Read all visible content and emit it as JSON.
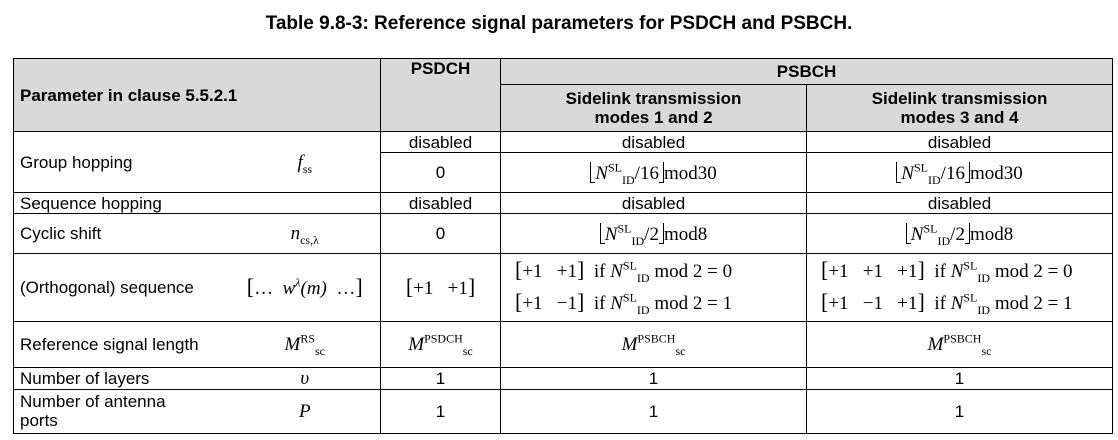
{
  "caption": "Table 9.8-3: Reference signal parameters for PSDCH and PSBCH.",
  "header": {
    "param": "Parameter in clause 5.5.2.1",
    "psdch": "PSDCH",
    "psbch": "PSBCH",
    "modes12": "Sidelink transmission modes 1 and 2",
    "modes34": "Sidelink transmission modes 3 and 4"
  },
  "rows": {
    "group_hopping": {
      "label": "Group hopping",
      "status_psdch": "disabled",
      "status_12": "disabled",
      "status_34": "disabled",
      "symbol_base": "f",
      "symbol_sub": "ss",
      "psdch": "0",
      "n_sym": "N",
      "n_sup": "SL",
      "n_sub": "ID",
      "div": "/16",
      "mod": "mod30"
    },
    "sequence_hopping": {
      "label": "Sequence hopping",
      "psdch": "disabled",
      "modes12": "disabled",
      "modes34": "disabled"
    },
    "cyclic_shift": {
      "label": "Cyclic shift",
      "symbol_base": "n",
      "symbol_sub": "cs,λ",
      "psdch": "0",
      "div": "/2",
      "mod": "mod8"
    },
    "orthogonal_sequence": {
      "label": "(Orthogonal) sequence",
      "symbol_ellipsis": "…",
      "symbol_w": "w",
      "symbol_sup": "λ",
      "symbol_arg": "(m)",
      "psdch": "+1   +1",
      "m12_line1": "+1   +1",
      "m12_line2": "+1   −1",
      "m34_line1": "+1   +1   +1",
      "m34_line2": "+1   −1   +1",
      "cond_if": "if",
      "cond_mod0": "mod 2 = 0",
      "cond_mod1": "mod 2 = 1"
    },
    "ref_signal_length": {
      "label": "Reference signal length",
      "symbol_base": "M",
      "symbol_sub": "sc",
      "symbol_sup": "RS",
      "psdch_sup": "PSDCH",
      "psbch_sup": "PSBCH"
    },
    "num_layers": {
      "label": "Number of layers",
      "symbol": "υ",
      "psdch": "1",
      "modes12": "1",
      "modes34": "1"
    },
    "num_antenna_ports": {
      "label": "Number of antenna ports",
      "symbol": "P",
      "psdch": "1",
      "modes12": "1",
      "modes34": "1"
    }
  }
}
